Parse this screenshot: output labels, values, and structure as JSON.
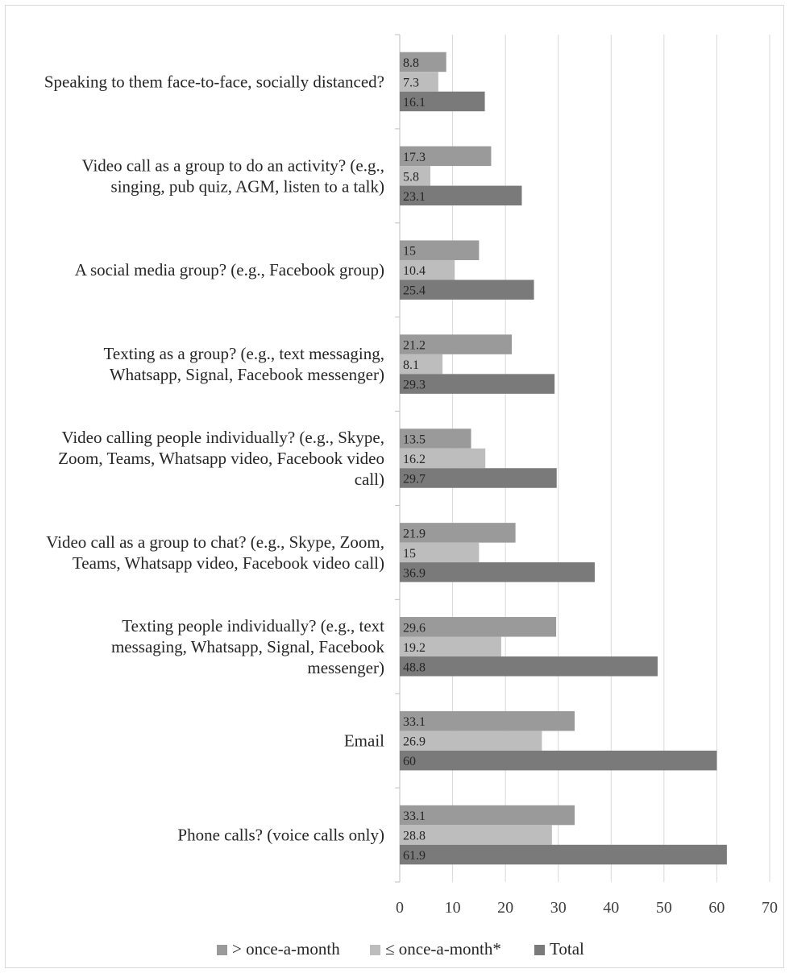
{
  "chart_data": {
    "type": "bar",
    "orientation": "horizontal",
    "categories": [
      [
        "Speaking to them face-to-face, socially distanced?"
      ],
      [
        "Video call as a group to do an activity? (e.g.,",
        "singing, pub quiz, AGM, listen to a talk)"
      ],
      [
        "A social media group? (e.g., Facebook group)"
      ],
      [
        "Texting as a group? (e.g., text messaging,",
        "Whatsapp, Signal, Facebook messenger)"
      ],
      [
        "Video calling people individually? (e.g., Skype,",
        "Zoom, Teams, Whatsapp video, Facebook video",
        "call)"
      ],
      [
        "Video call as a group to chat? (e.g., Skype, Zoom,",
        "Teams, Whatsapp video, Facebook video call)"
      ],
      [
        "Texting people individually? (e.g., text",
        "messaging, Whatsapp, Signal, Facebook",
        "messenger)"
      ],
      [
        "Email"
      ],
      [
        "Phone calls? (voice calls only)"
      ]
    ],
    "series": [
      {
        "name": "> once-a-month",
        "color": "#9a9a9a",
        "values": [
          8.8,
          17.3,
          15,
          21.2,
          13.5,
          21.9,
          29.6,
          33.1,
          33.1
        ]
      },
      {
        "name": "≤ once-a-month*",
        "color": "#bdbdbd",
        "values": [
          7.3,
          5.8,
          10.4,
          8.1,
          16.2,
          15,
          19.2,
          26.9,
          28.8
        ]
      },
      {
        "name": "Total",
        "color": "#7a7a7a",
        "values": [
          16.1,
          23.1,
          25.4,
          29.3,
          29.7,
          36.9,
          48.8,
          60,
          61.9
        ]
      }
    ],
    "xlim": [
      0,
      70
    ],
    "xticks": [
      "0",
      "10",
      "20",
      "30",
      "40",
      "50",
      "60",
      "70"
    ],
    "grid": true,
    "legend_position": "bottom",
    "data_labels": true
  }
}
